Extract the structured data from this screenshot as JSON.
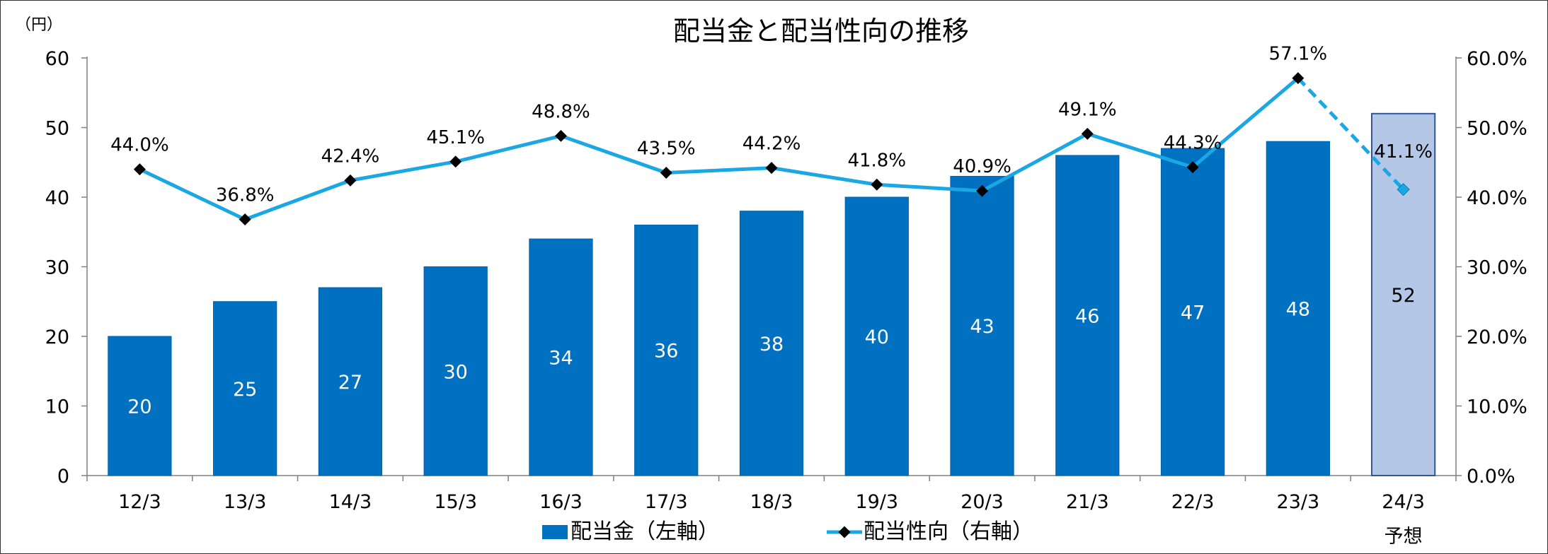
{
  "chart_data": {
    "type": "bar",
    "title": "配当金と配当性向の推移",
    "y_left_unit": "（円）",
    "categories": [
      "12/3",
      "13/3",
      "14/3",
      "15/3",
      "16/3",
      "17/3",
      "18/3",
      "19/3",
      "20/3",
      "21/3",
      "22/3",
      "23/3",
      "24/3"
    ],
    "forecast_label": "予想",
    "forecast_index": 12,
    "y_left": {
      "min": 0,
      "max": 60,
      "step": 10,
      "ticks": [
        "0",
        "10",
        "20",
        "30",
        "40",
        "50",
        "60"
      ]
    },
    "y_right": {
      "min": 0,
      "max": 60,
      "step": 10,
      "ticks": [
        "0.0%",
        "10.0%",
        "20.0%",
        "30.0%",
        "40.0%",
        "50.0%",
        "60.0%"
      ]
    },
    "series": [
      {
        "name": "配当金（左軸）",
        "type": "bar",
        "axis": "left",
        "values": [
          20,
          25,
          27,
          30,
          34,
          36,
          38,
          40,
          43,
          46,
          47,
          48,
          52
        ],
        "labels": [
          "20",
          "25",
          "27",
          "30",
          "34",
          "36",
          "38",
          "40",
          "43",
          "46",
          "47",
          "48",
          "52"
        ],
        "color": "#0070C0",
        "forecast_color": "#B4C7E7"
      },
      {
        "name": "配当性向（右軸）",
        "type": "line",
        "axis": "right",
        "values": [
          44.0,
          36.8,
          42.4,
          45.1,
          48.8,
          43.5,
          44.2,
          41.8,
          40.9,
          49.1,
          44.3,
          57.1,
          41.1
        ],
        "labels": [
          "44.0%",
          "36.8%",
          "42.4%",
          "45.1%",
          "48.8%",
          "43.5%",
          "44.2%",
          "41.8%",
          "40.9%",
          "49.1%",
          "44.3%",
          "57.1%",
          "41.1%"
        ],
        "color": "#1AA7E3",
        "marker_color": "#000000"
      }
    ],
    "legend": {
      "position": "bottom"
    },
    "grid": false
  }
}
